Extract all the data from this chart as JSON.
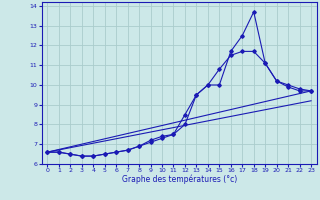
{
  "xlabel": "Graphe des températures (°c)",
  "bg_color": "#cce8e8",
  "grid_color": "#aacccc",
  "line_color": "#1a1ab4",
  "xlim": [
    -0.5,
    23.5
  ],
  "ylim": [
    6,
    14.2
  ],
  "xticks": [
    0,
    1,
    2,
    3,
    4,
    5,
    6,
    7,
    8,
    9,
    10,
    11,
    12,
    13,
    14,
    15,
    16,
    17,
    18,
    19,
    20,
    21,
    22,
    23
  ],
  "yticks": [
    6,
    7,
    8,
    9,
    10,
    11,
    12,
    13,
    14
  ],
  "series1_x": [
    0,
    1,
    2,
    3,
    4,
    5,
    6,
    7,
    8,
    9,
    10,
    11,
    12,
    13,
    14,
    15,
    16,
    17,
    18,
    19,
    20,
    21,
    22,
    23
  ],
  "series1_y": [
    6.6,
    6.6,
    6.5,
    6.4,
    6.4,
    6.5,
    6.6,
    6.7,
    6.9,
    7.1,
    7.3,
    7.5,
    8.0,
    9.5,
    10.0,
    10.0,
    11.7,
    12.5,
    13.7,
    11.1,
    10.2,
    9.9,
    9.7,
    9.7
  ],
  "series2_x": [
    0,
    1,
    2,
    3,
    4,
    5,
    6,
    7,
    8,
    9,
    10,
    11,
    12,
    13,
    14,
    15,
    16,
    17,
    18,
    19,
    20,
    21,
    22,
    23
  ],
  "series2_y": [
    6.6,
    6.6,
    6.5,
    6.4,
    6.4,
    6.5,
    6.6,
    6.7,
    6.9,
    7.2,
    7.4,
    7.5,
    8.5,
    9.5,
    10.0,
    10.8,
    11.5,
    11.7,
    11.7,
    11.1,
    10.2,
    10.0,
    9.8,
    9.7
  ],
  "series3_x": [
    0,
    23
  ],
  "series3_y": [
    6.6,
    9.7
  ],
  "series4_x": [
    0,
    23
  ],
  "series4_y": [
    6.6,
    9.2
  ]
}
